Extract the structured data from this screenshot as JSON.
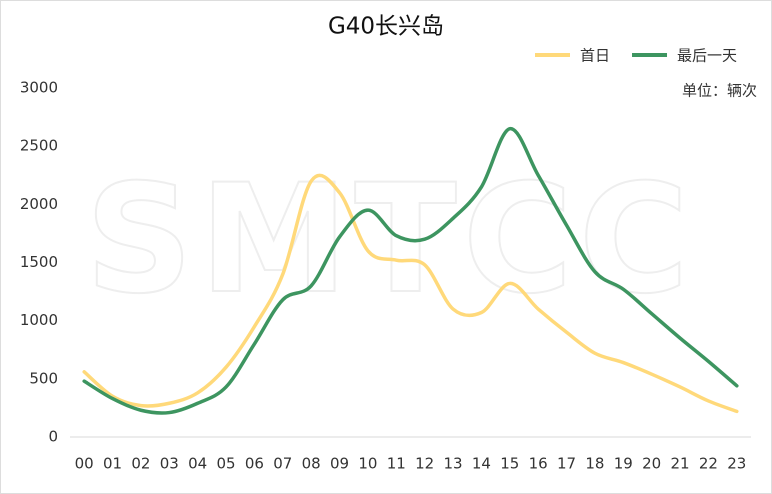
{
  "chart_data": {
    "type": "line",
    "title": "G40长兴岛",
    "unit_label": "单位：辆次",
    "watermark": "SMTCC",
    "categories": [
      "00",
      "01",
      "02",
      "03",
      "04",
      "05",
      "06",
      "07",
      "08",
      "09",
      "10",
      "11",
      "12",
      "13",
      "14",
      "15",
      "16",
      "17",
      "18",
      "19",
      "20",
      "21",
      "22",
      "23"
    ],
    "series": [
      {
        "name": "首日",
        "color": "#ffd97a",
        "values": [
          560,
          350,
          270,
          290,
          380,
          600,
          950,
          1400,
          2200,
          2100,
          1600,
          1520,
          1480,
          1100,
          1070,
          1320,
          1100,
          900,
          720,
          640,
          540,
          430,
          310,
          220
        ]
      },
      {
        "name": "最后一天",
        "color": "#3d9560",
        "values": [
          480,
          330,
          230,
          210,
          290,
          430,
          800,
          1180,
          1300,
          1720,
          1950,
          1730,
          1700,
          1880,
          2150,
          2650,
          2250,
          1820,
          1420,
          1270,
          1060,
          850,
          650,
          440
        ]
      }
    ],
    "ylim": [
      0,
      3000
    ],
    "yticks": [
      0,
      500,
      1000,
      1500,
      2000,
      2500,
      3000
    ],
    "legend": "top-right"
  }
}
